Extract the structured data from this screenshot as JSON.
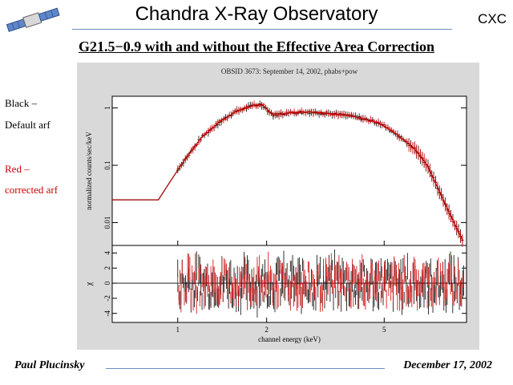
{
  "header": {
    "title": "Chandra X-Ray Observatory",
    "org": "CXC",
    "subtitle": "G21.5−0.9 with and without the Effective Area Correction"
  },
  "legend": {
    "black_line1": "Black –",
    "black_line2": "Default arf",
    "red_line1": "Red –",
    "red_line2": "corrected arf",
    "black_color": "#000000",
    "red_color": "#cc0000"
  },
  "footer": {
    "author": "Paul Plucinsky",
    "date": "December 17, 2002"
  },
  "chart_data": {
    "type": "line",
    "title": "OBSID 3673: September 14, 2002, phabs+pow",
    "xlabel": "channel energy (keV)",
    "top_ylabel": "normalized counts/sec/keV",
    "bottom_ylabel": "χ",
    "x_scale": "log",
    "top_y_scale": "log",
    "xlim": [
      0.6,
      9.5
    ],
    "top_ylim": [
      0.004,
      1.6
    ],
    "bottom_ylim": [
      -5.2,
      5
    ],
    "x_ticks": [
      {
        "value": 1,
        "label": "1"
      },
      {
        "value": 2,
        "label": "2"
      },
      {
        "value": 5,
        "label": "5"
      }
    ],
    "top_y_ticks": [
      {
        "value": 1,
        "label": "1"
      },
      {
        "value": 0.1,
        "label": "0.1"
      },
      {
        "value": 0.01,
        "label": "0.01"
      }
    ],
    "bottom_y_ticks": [
      {
        "value": 4,
        "label": "4"
      },
      {
        "value": 2,
        "label": "2"
      },
      {
        "value": 0,
        "label": "0"
      },
      {
        "value": -2,
        "label": "-2"
      },
      {
        "value": -4,
        "label": "-4"
      }
    ],
    "series": [
      {
        "name": "Default arf",
        "color": "#000000",
        "x": [
          0.6,
          0.86,
          0.95,
          1.05,
          1.2,
          1.4,
          1.6,
          1.8,
          1.9,
          1.95,
          2.1,
          2.4,
          2.8,
          3.3,
          4,
          4.8,
          5.5,
          6.3,
          7,
          7.6,
          8.3,
          9.2
        ],
        "y": [
          0.025,
          0.025,
          0.055,
          0.12,
          0.3,
          0.6,
          0.9,
          1.1,
          1.15,
          1.1,
          0.75,
          0.82,
          0.85,
          0.8,
          0.7,
          0.55,
          0.35,
          0.2,
          0.1,
          0.04,
          0.015,
          0.005
        ]
      },
      {
        "name": "corrected arf",
        "color": "#cc0000",
        "x": [
          0.6,
          0.86,
          0.95,
          1.05,
          1.2,
          1.4,
          1.6,
          1.8,
          1.9,
          1.95,
          2.1,
          2.4,
          2.8,
          3.3,
          4,
          4.8,
          5.5,
          6.3,
          7,
          7.6,
          8.3,
          9.2
        ],
        "y": [
          0.025,
          0.025,
          0.055,
          0.12,
          0.3,
          0.6,
          0.9,
          1.1,
          1.15,
          1.1,
          0.75,
          0.82,
          0.85,
          0.8,
          0.7,
          0.55,
          0.35,
          0.2,
          0.1,
          0.04,
          0.015,
          0.005
        ]
      }
    ],
    "grid": false
  }
}
